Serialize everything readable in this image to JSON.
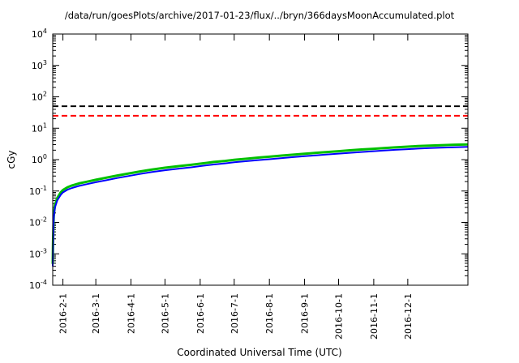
{
  "chart_data": {
    "type": "line",
    "title": "/data/run/goesPlots/archive/2017-01-23/flux/../bryn/366daysMoonAccumulated.plot",
    "xlabel": "Coordinated Universal Time (UTC)",
    "ylabel": "cGy",
    "y_scale": "log",
    "ylim": [
      0.0001,
      10000
    ],
    "y_tick_exponents": [
      -4,
      -3,
      -2,
      -1,
      0,
      1,
      2,
      3,
      4
    ],
    "x_unit": "day-of-year-2016",
    "xlim": [
      23,
      389
    ],
    "x_ticks": [
      {
        "day": 32,
        "label": "2016-2-1"
      },
      {
        "day": 61,
        "label": "2016-3-1"
      },
      {
        "day": 92,
        "label": "2016-4-1"
      },
      {
        "day": 122,
        "label": "2016-5-1"
      },
      {
        "day": 153,
        "label": "2016-6-1"
      },
      {
        "day": 183,
        "label": "2016-7-1"
      },
      {
        "day": 214,
        "label": "2016-8-1"
      },
      {
        "day": 245,
        "label": "2016-9-1"
      },
      {
        "day": 275,
        "label": "2016-10-1"
      },
      {
        "day": 306,
        "label": "2016-11-1"
      },
      {
        "day": 336,
        "label": "2016-12-1"
      }
    ],
    "grid": false,
    "legend": "none",
    "thresholds": [
      {
        "name": "black-dashed-limit",
        "value": 50,
        "color": "#000000",
        "style": "dashed"
      },
      {
        "name": "red-dashed-limit",
        "value": 25,
        "color": "#ff0000",
        "style": "dashed"
      }
    ],
    "x": [
      23,
      23.3,
      23.7,
      24,
      25,
      27,
      30,
      32,
      36,
      40,
      46,
      53,
      61,
      70,
      80,
      92,
      100,
      110,
      122,
      135,
      145,
      153,
      165,
      175,
      183,
      195,
      205,
      214,
      225,
      235,
      245,
      255,
      265,
      275,
      285,
      295,
      306,
      315,
      325,
      336,
      345,
      355,
      365,
      377,
      389
    ],
    "series": [
      {
        "name": "accumulated-dose-green",
        "color": "#00c000",
        "values": [
          0.00048,
          0.0024,
          0.0096,
          0.018,
          0.036,
          0.06,
          0.09,
          0.108,
          0.132,
          0.15,
          0.174,
          0.198,
          0.228,
          0.264,
          0.312,
          0.372,
          0.42,
          0.48,
          0.552,
          0.624,
          0.684,
          0.744,
          0.84,
          0.912,
          0.984,
          1.08,
          1.164,
          1.236,
          1.344,
          1.44,
          1.536,
          1.644,
          1.752,
          1.86,
          1.98,
          2.1,
          2.22,
          2.34,
          2.46,
          2.58,
          2.7,
          2.784,
          2.88,
          2.976,
          3.06
        ]
      },
      {
        "name": "accumulated-dose-blue",
        "color": "#0000ff",
        "values": [
          0.0004,
          0.002,
          0.008,
          0.015,
          0.03,
          0.05,
          0.075,
          0.09,
          0.11,
          0.125,
          0.145,
          0.165,
          0.19,
          0.22,
          0.26,
          0.31,
          0.35,
          0.4,
          0.46,
          0.52,
          0.57,
          0.62,
          0.7,
          0.76,
          0.82,
          0.9,
          0.97,
          1.03,
          1.12,
          1.2,
          1.28,
          1.37,
          1.46,
          1.55,
          1.65,
          1.75,
          1.85,
          1.95,
          2.05,
          2.15,
          2.25,
          2.32,
          2.4,
          2.48,
          2.55
        ]
      }
    ]
  }
}
